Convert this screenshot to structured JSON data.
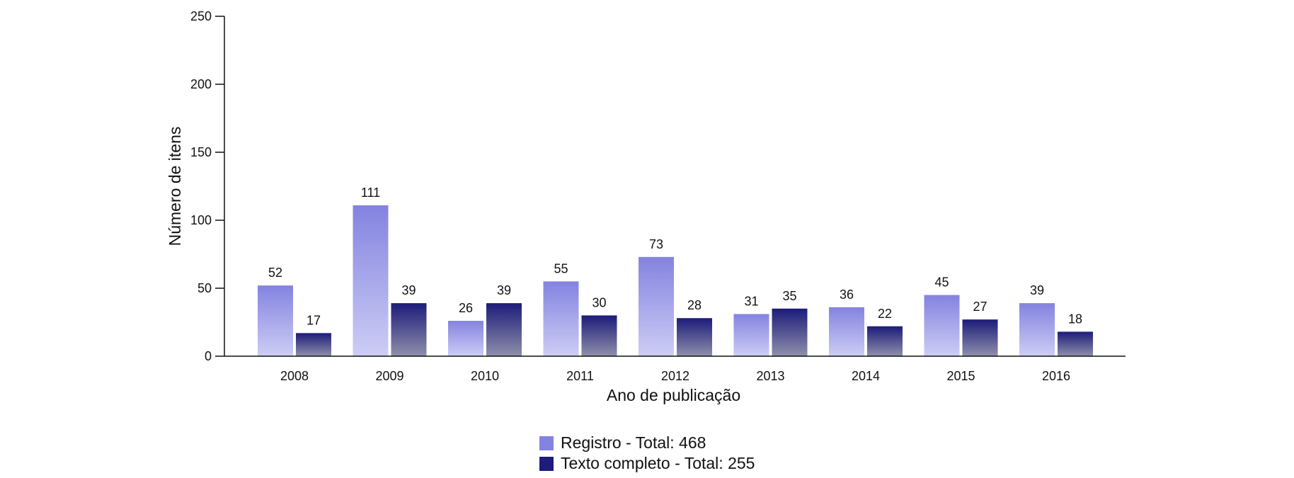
{
  "chart_data": {
    "type": "bar",
    "categories": [
      "2008",
      "2009",
      "2010",
      "2011",
      "2012",
      "2013",
      "2014",
      "2015",
      "2016"
    ],
    "series": [
      {
        "name": "Registro - Total: 468",
        "values": [
          52,
          111,
          26,
          55,
          73,
          31,
          36,
          45,
          39
        ],
        "color": "#8383e0",
        "color_light": "#cdcdf5"
      },
      {
        "name": "Texto completo - Total: 255",
        "values": [
          17,
          39,
          39,
          30,
          28,
          35,
          22,
          27,
          18
        ],
        "color": "#1c1c7a",
        "color_light": "#8f8fab"
      }
    ],
    "xlabel": "Ano de publicação",
    "ylabel": "Número de itens",
    "ylim": [
      0,
      250
    ],
    "yticks": [
      0,
      50,
      100,
      150,
      200,
      250
    ],
    "legend_position": "bottom-center",
    "grid": false
  }
}
